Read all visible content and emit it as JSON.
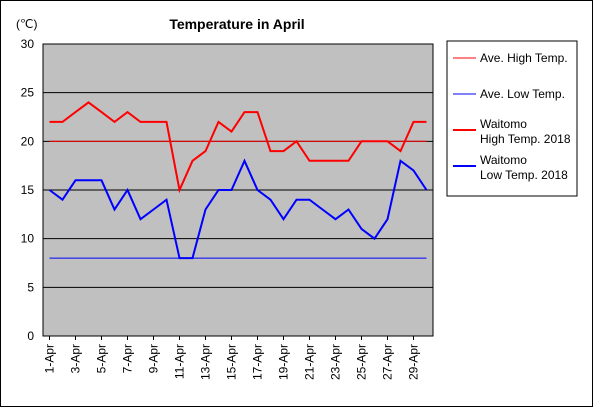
{
  "chart_data": {
    "type": "line",
    "title": "Temperature in April",
    "unit_label": "(℃)",
    "ylim": [
      0,
      30
    ],
    "yticks": [
      0,
      5,
      10,
      15,
      20,
      25,
      30
    ],
    "xlabels": [
      "1-Apr",
      "3-Apr",
      "5-Apr",
      "7-Apr",
      "9-Apr",
      "11-Apr",
      "13-Apr",
      "15-Apr",
      "17-Apr",
      "19-Apr",
      "21-Apr",
      "23-Apr",
      "25-Apr",
      "27-Apr",
      "29-Apr"
    ],
    "x": [
      1,
      2,
      3,
      4,
      5,
      6,
      7,
      8,
      9,
      10,
      11,
      12,
      13,
      14,
      15,
      16,
      17,
      18,
      19,
      20,
      21,
      22,
      23,
      24,
      25,
      26,
      27,
      28,
      29,
      30
    ],
    "grid": true,
    "background": "#c0c0c0",
    "legend_position": "right",
    "series": [
      {
        "name": "Ave. High Temp.",
        "color": "#ff0000",
        "width": 1,
        "constant": 20
      },
      {
        "name": "Ave. Low Temp.",
        "color": "#0000ff",
        "width": 1,
        "constant": 8
      },
      {
        "name": "Waitomo\nHigh Temp. 2018",
        "color": "#ff0000",
        "width": 2,
        "values": [
          22,
          22,
          23,
          24,
          23,
          22,
          23,
          22,
          22,
          22,
          15,
          18,
          19,
          22,
          21,
          23,
          23,
          19,
          19,
          20,
          18,
          18,
          18,
          18,
          20,
          20,
          20,
          19,
          22,
          22
        ]
      },
      {
        "name": "Waitomo\nLow Temp. 2018",
        "color": "#0000ff",
        "width": 2,
        "values": [
          15,
          14,
          16,
          16,
          16,
          13,
          15,
          12,
          13,
          14,
          8,
          8,
          13,
          15,
          15,
          18,
          15,
          14,
          12,
          14,
          14,
          13,
          12,
          13,
          11,
          10,
          12,
          18,
          17,
          15
        ]
      }
    ]
  }
}
